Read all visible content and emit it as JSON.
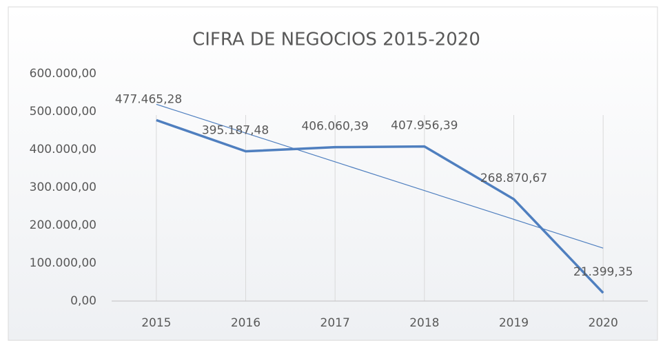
{
  "chart_data": {
    "type": "line",
    "title": "CIFRA DE NEGOCIOS 2015-2020",
    "categories": [
      "2015",
      "2016",
      "2017",
      "2018",
      "2019",
      "2020"
    ],
    "series": [
      {
        "name": "Cifra de negocios",
        "color": "#4f7fbf",
        "values": [
          477465.28,
          395187.48,
          406060.39,
          407956.39,
          268870.67,
          21399.35
        ],
        "value_labels": [
          "477.465,28",
          "395.187,48",
          "406.060,39",
          "407.956,39",
          "268.870,67",
          "21.399,35"
        ]
      }
    ],
    "trendline": "linear",
    "ylim": [
      0,
      600000
    ],
    "yticks": [
      {
        "value": 0,
        "label": "0,00"
      },
      {
        "value": 100000,
        "label": "100.000,00"
      },
      {
        "value": 200000,
        "label": "200.000,00"
      },
      {
        "value": 300000,
        "label": "300.000,00"
      },
      {
        "value": 400000,
        "label": "400.000,00"
      },
      {
        "value": 500000,
        "label": "500.000,00"
      },
      {
        "value": 600000,
        "label": "600.000,00"
      }
    ],
    "grid": "vertical"
  }
}
